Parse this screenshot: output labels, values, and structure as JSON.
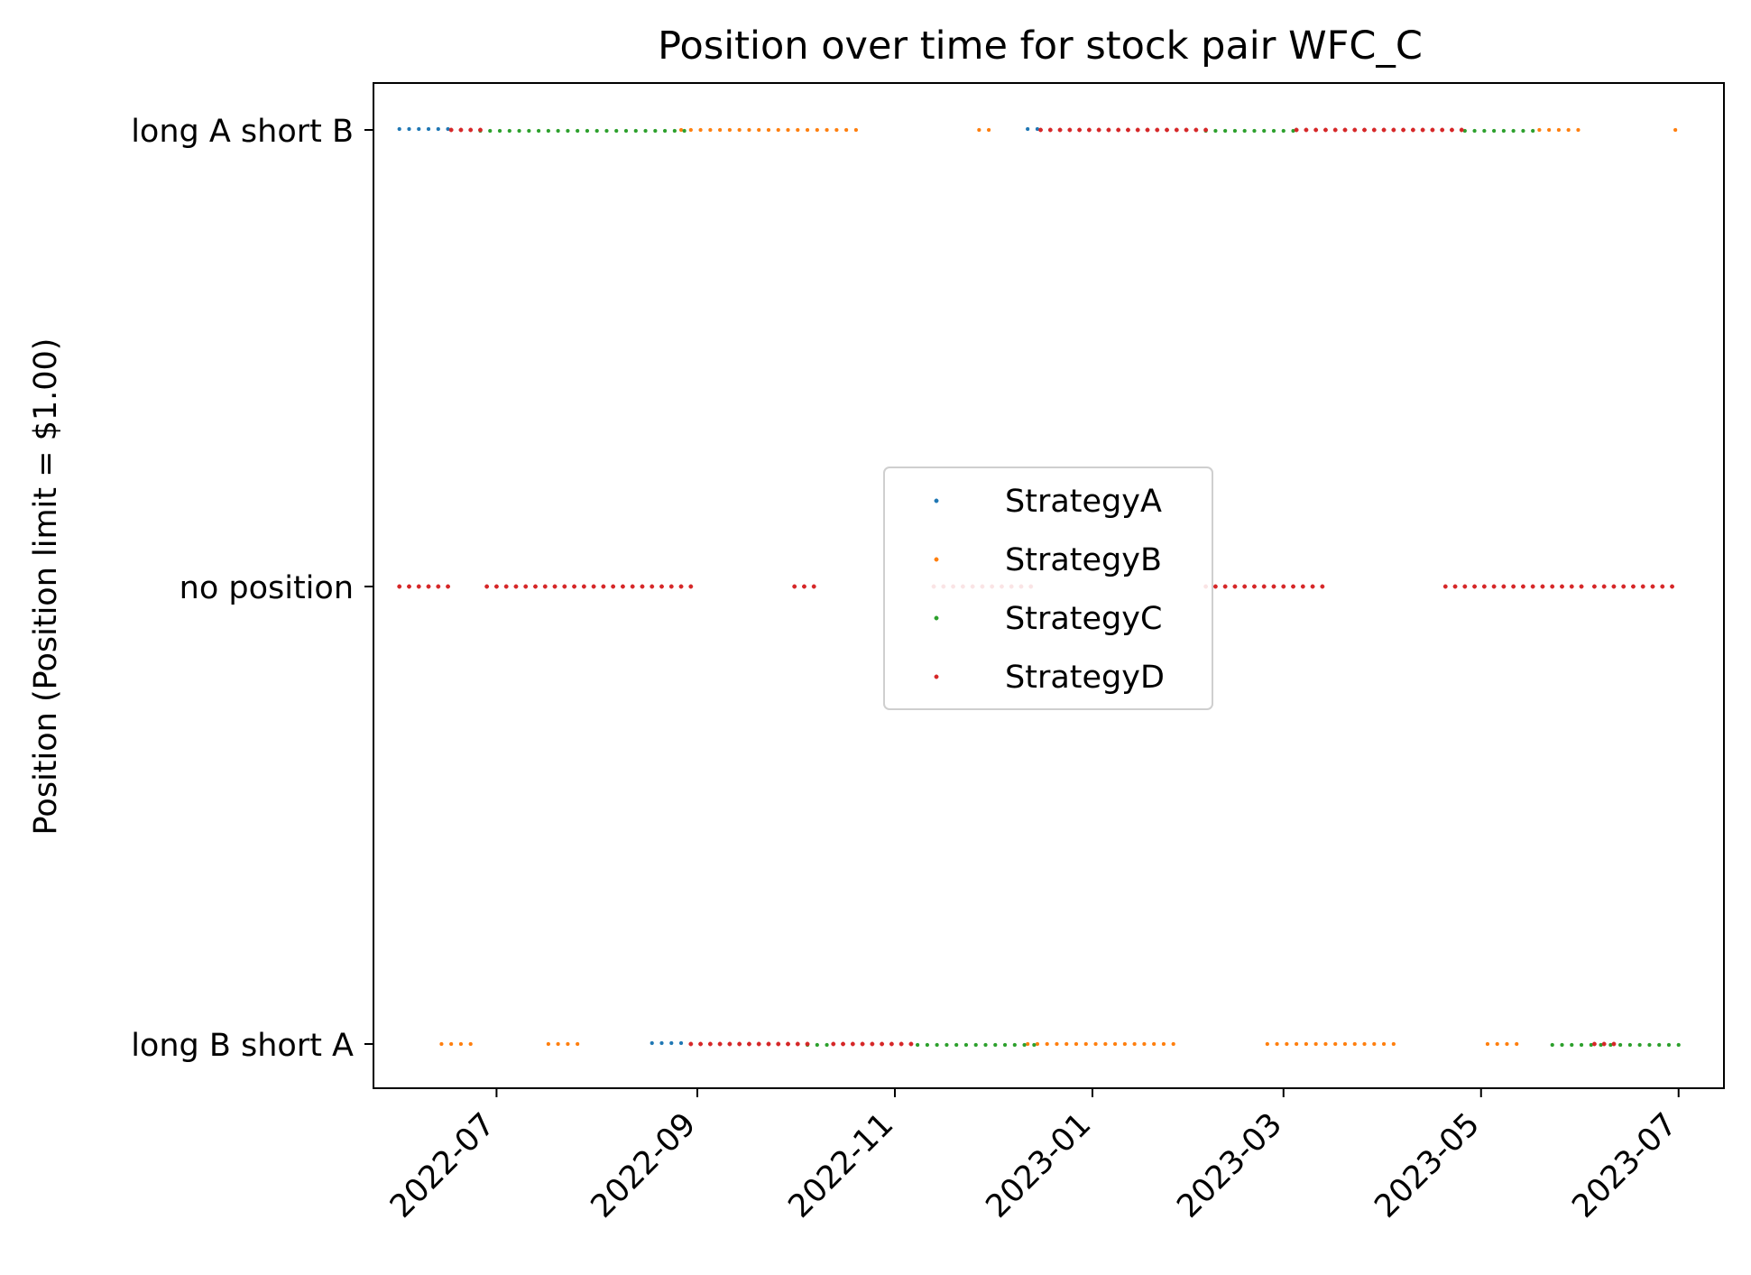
{
  "chart_data": {
    "type": "scatter",
    "title": "Position over time for stock pair WFC_C",
    "xlabel": "",
    "ylabel": "Position (Position limit = $1.00)",
    "x_ticks": [
      "2022-07",
      "2022-09",
      "2022-11",
      "2023-01",
      "2023-03",
      "2023-05",
      "2023-07"
    ],
    "y_categories": [
      "long B short A",
      "no position",
      "long A short B"
    ],
    "xlim": [
      "2022-05-24",
      "2023-07-15"
    ],
    "legend_position": "center",
    "series": [
      {
        "name": "StrategyA",
        "color": "#1f77b4",
        "segments": [
          {
            "y": "long A short B",
            "start": "2022-06-01",
            "end": "2022-06-17"
          },
          {
            "y": "long B short A",
            "start": "2022-08-18",
            "end": "2022-08-29"
          },
          {
            "y": "long A short B",
            "start": "2022-12-12",
            "end": "2022-12-16"
          }
        ]
      },
      {
        "name": "StrategyB",
        "color": "#ff7f0e",
        "segments": [
          {
            "y": "long B short A",
            "start": "2022-06-14",
            "end": "2022-06-24"
          },
          {
            "y": "long B short A",
            "start": "2022-07-17",
            "end": "2022-07-28"
          },
          {
            "y": "long A short B",
            "start": "2022-08-27",
            "end": "2022-10-20"
          },
          {
            "y": "long A short B",
            "start": "2022-11-27",
            "end": "2022-12-02"
          },
          {
            "y": "long B short A",
            "start": "2022-12-12",
            "end": "2023-01-27"
          },
          {
            "y": "long B short A",
            "start": "2023-02-24",
            "end": "2023-04-06"
          },
          {
            "y": "long B short A",
            "start": "2023-05-03",
            "end": "2023-05-14"
          },
          {
            "y": "long A short B",
            "start": "2023-05-19",
            "end": "2023-06-01"
          },
          {
            "y": "long A short B",
            "start": "2023-06-30",
            "end": "2023-06-30"
          }
        ]
      },
      {
        "name": "StrategyC",
        "color": "#2ca02c",
        "segments": [
          {
            "y": "long A short B",
            "start": "2022-06-26",
            "end": "2022-08-29"
          },
          {
            "y": "long B short A",
            "start": "2022-10-05",
            "end": "2022-10-12"
          },
          {
            "y": "long B short A",
            "start": "2022-11-08",
            "end": "2022-12-15"
          },
          {
            "y": "long A short B",
            "start": "2023-02-05",
            "end": "2023-03-05"
          },
          {
            "y": "long A short B",
            "start": "2023-04-26",
            "end": "2023-05-18"
          },
          {
            "y": "long B short A",
            "start": "2023-05-23",
            "end": "2023-07-01"
          }
        ]
      },
      {
        "name": "StrategyD",
        "color": "#d62728",
        "segments": [
          {
            "y": "no position",
            "start": "2022-06-01",
            "end": "2022-06-16"
          },
          {
            "y": "long A short B",
            "start": "2022-06-17",
            "end": "2022-06-26"
          },
          {
            "y": "no position",
            "start": "2022-06-28",
            "end": "2022-08-31"
          },
          {
            "y": "long B short A",
            "start": "2022-08-30",
            "end": "2022-10-05"
          },
          {
            "y": "no position",
            "start": "2022-10-01",
            "end": "2022-10-09"
          },
          {
            "y": "long B short A",
            "start": "2022-10-13",
            "end": "2022-11-08"
          },
          {
            "y": "no position",
            "start": "2022-11-13",
            "end": "2022-12-15"
          },
          {
            "y": "long A short B",
            "start": "2022-12-16",
            "end": "2023-02-05"
          },
          {
            "y": "no position",
            "start": "2023-02-05",
            "end": "2023-03-14"
          },
          {
            "y": "long A short B",
            "start": "2023-03-05",
            "end": "2023-04-26"
          },
          {
            "y": "no position",
            "start": "2023-04-20",
            "end": "2023-06-01"
          },
          {
            "y": "long B short A",
            "start": "2023-06-05",
            "end": "2023-06-12"
          },
          {
            "y": "no position",
            "start": "2023-06-05",
            "end": "2023-07-01"
          }
        ]
      }
    ]
  }
}
